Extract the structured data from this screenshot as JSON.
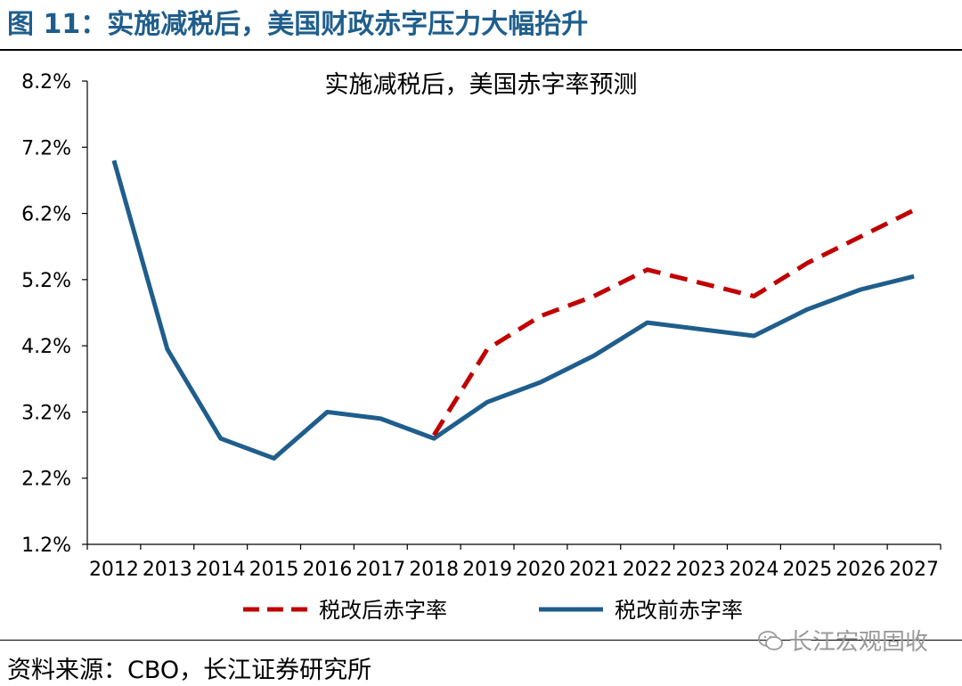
{
  "figure": {
    "title": "图 11：实施减税后，美国财政赤字压力大幅抬升",
    "source": "资料来源：CBO，长江证券研究所",
    "watermark": "长江宏观固收",
    "watermark_icon": "wechat-icon"
  },
  "chart_data": {
    "type": "line",
    "title": "实施减税后，美国赤字率预测",
    "xlabel": "",
    "ylabel": "",
    "categories": [
      "2012",
      "2013",
      "2014",
      "2015",
      "2016",
      "2017",
      "2018",
      "2019",
      "2020",
      "2021",
      "2022",
      "2023",
      "2024",
      "2025",
      "2026",
      "2027"
    ],
    "y_ticks": [
      "1.2%",
      "2.2%",
      "3.2%",
      "4.2%",
      "5.2%",
      "6.2%",
      "7.2%",
      "8.2%"
    ],
    "ylim": [
      1.2,
      8.2
    ],
    "grid": false,
    "legend_position": "bottom",
    "series": [
      {
        "name": "税改后赤字率",
        "color": "#c00000",
        "style": "dashed",
        "start_index": 6,
        "values": [
          null,
          null,
          null,
          null,
          null,
          null,
          2.85,
          4.15,
          4.65,
          4.95,
          5.35,
          5.15,
          4.95,
          5.45,
          5.85,
          6.25
        ]
      },
      {
        "name": "税改前赤字率",
        "color": "#1f5e8c",
        "style": "solid",
        "start_index": 0,
        "values": [
          7.0,
          4.15,
          2.8,
          2.5,
          3.2,
          3.1,
          2.8,
          3.35,
          3.65,
          4.05,
          4.55,
          4.45,
          4.35,
          4.75,
          5.05,
          5.25
        ]
      }
    ]
  }
}
